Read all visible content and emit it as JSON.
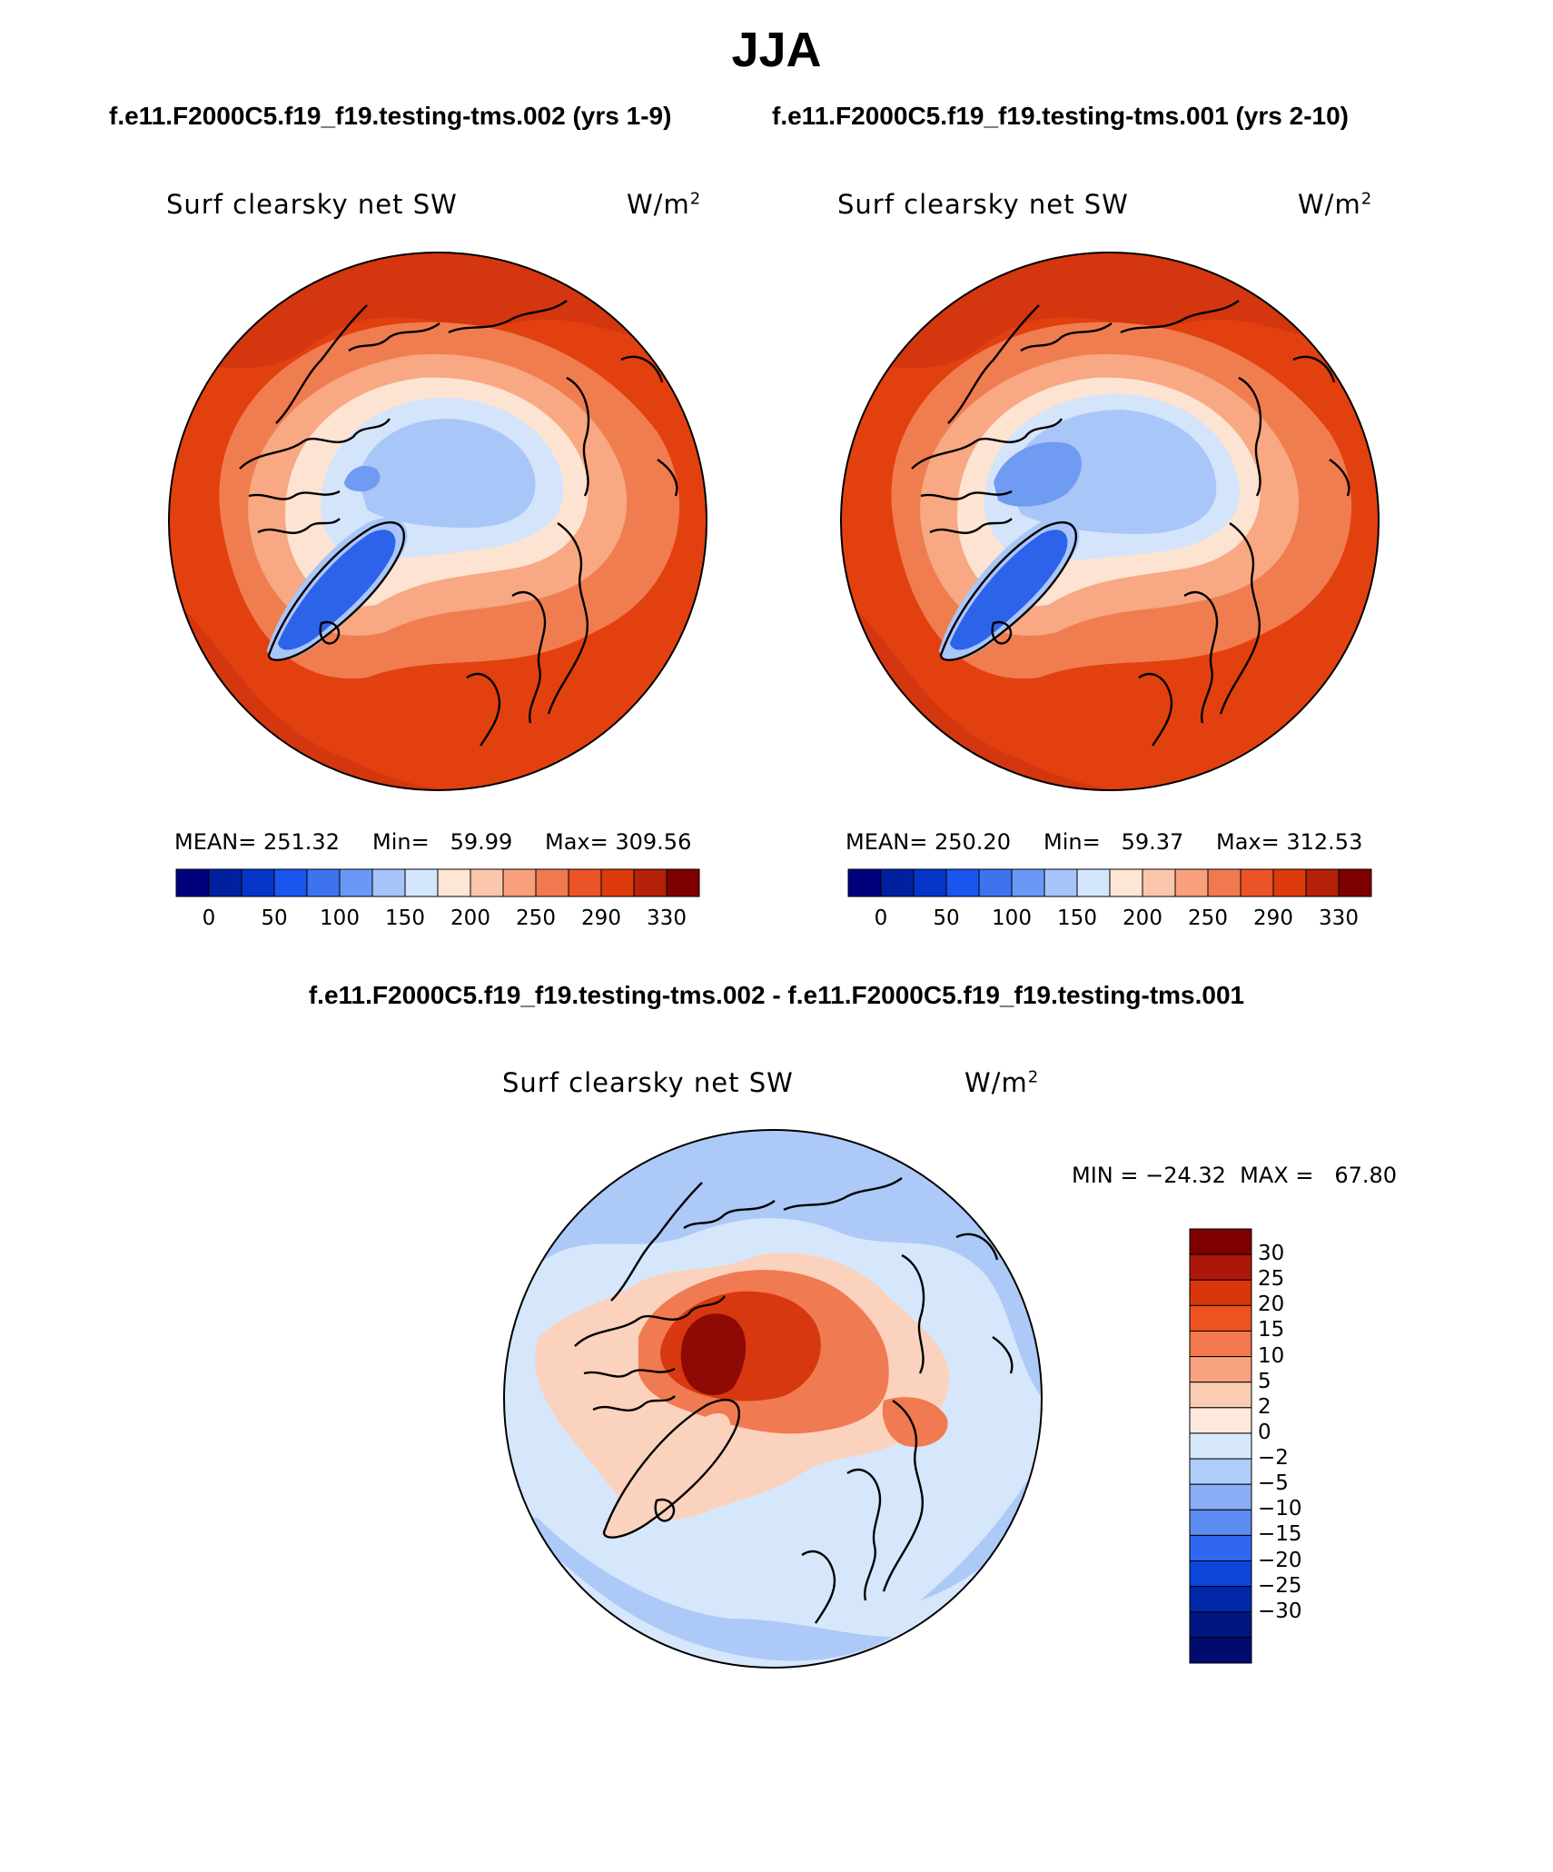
{
  "figure": {
    "season": "JJA",
    "case_a_label": "f.e11.F2000C5.f19_f19.testing-tms.002 (yrs 1-9)",
    "case_b_label": "f.e11.F2000C5.f19_f19.testing-tms.001 (yrs 2-10)",
    "diff_title": "f.e11.F2000C5.f19_f19.testing-tms.002 - f.e11.F2000C5.f19_f19.testing-tms.001"
  },
  "panels": [
    {
      "variable": "Surf clearsky net SW",
      "units": "W/m",
      "units_sup": "2",
      "mean_text": "MEAN= 251.32",
      "min_text": "Min=   59.99",
      "max_text": "Max= 309.56"
    },
    {
      "variable": "Surf clearsky net SW",
      "units": "W/m",
      "units_sup": "2",
      "mean_text": "MEAN= 250.20",
      "min_text": "Min=   59.37",
      "max_text": "Max= 312.53"
    },
    {
      "variable": "Surf clearsky net SW",
      "units": "W/m",
      "units_sup": "2",
      "minmax_text": "MIN = −24.32  MAX =   67.80"
    }
  ],
  "colorbars": {
    "horizontal": {
      "colors": [
        "#00007f",
        "#0020a0",
        "#0635c8",
        "#1a55f0",
        "#3d73ef",
        "#6a98f5",
        "#a6c4f9",
        "#d4e6fb",
        "#fde6d4",
        "#fbc7ac",
        "#f7a07b",
        "#f27850",
        "#ec5426",
        "#dc3a0c",
        "#b52109",
        "#7f0000"
      ],
      "tick_labels": [
        "0",
        "50",
        "100",
        "150",
        "200",
        "250",
        "290",
        "330"
      ]
    },
    "vertical": {
      "colors_top_to_bottom": [
        "#7f0000",
        "#ac1808",
        "#d8350a",
        "#ed5221",
        "#f2784e",
        "#f7a37f",
        "#fbccb2",
        "#fde9dc",
        "#d8e8fc",
        "#b0ccf9",
        "#8aaef5",
        "#5c8cf2",
        "#2f67ef",
        "#0b45da",
        "#0028a8",
        "#001680",
        "#000b6e"
      ],
      "tick_labels": [
        "30",
        "25",
        "20",
        "15",
        "10",
        "5",
        "2",
        "0",
        "−2",
        "−5",
        "−10",
        "−15",
        "−20",
        "−25",
        "−30"
      ]
    }
  },
  "map_layers": {
    "top_ocean": "#e2410f",
    "top_ocean_dark": "#d43610",
    "top_land_band": "#f07d50",
    "top_mid": "#f8a882",
    "top_light": "#fde3d2",
    "top_ice_light": "#d4e4fb",
    "top_ice_mid": "#a9c6f8",
    "top_ice_dark": "#6f9bf3",
    "top_greenland": "#2d62ea",
    "diff_bg": "#d6e7fb",
    "diff_blue": "#adc9f8",
    "diff_blue_dark": "#6f99f1",
    "diff_red_light": "#fbd2bd",
    "diff_red": "#f07a51",
    "diff_red_dark": "#d8380f",
    "diff_red_deep": "#8f0a04"
  }
}
